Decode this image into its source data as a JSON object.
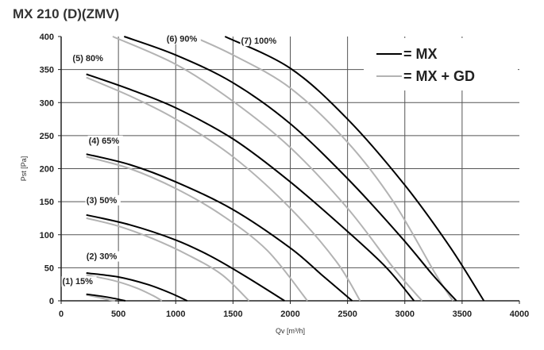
{
  "title": "MX 210 (D)(ZMV)",
  "chart_data": {
    "type": "line",
    "xlabel": "Qv [m³/h]",
    "ylabel": "Pst [Pa]",
    "xlim": [
      0,
      4000
    ],
    "ylim": [
      0,
      400
    ],
    "xticks": [
      "0",
      "500",
      "1000",
      "1500",
      "2000",
      "2500",
      "3000",
      "3500",
      "4000"
    ],
    "yticks": [
      "0",
      "50",
      "100",
      "150",
      "200",
      "250",
      "300",
      "350",
      "400"
    ],
    "grid": true,
    "legend_position": "top-right",
    "legend": [
      {
        "label": "= MX",
        "color": "#000000"
      },
      {
        "label": "= MX + GD",
        "color": "#b3b3b3"
      }
    ],
    "series": [
      {
        "group": "MX",
        "curve": "(1) 15%",
        "points": [
          [
            220,
            10
          ],
          [
            350,
            7
          ],
          [
            450,
            4
          ],
          [
            560,
            0
          ]
        ]
      },
      {
        "group": "MX + GD",
        "curve": "(1) 15%",
        "points": [
          [
            220,
            9
          ],
          [
            330,
            5
          ],
          [
            430,
            1
          ],
          [
            470,
            0
          ]
        ]
      },
      {
        "group": "MX",
        "curve": "(2) 30%",
        "points": [
          [
            220,
            42
          ],
          [
            500,
            36
          ],
          [
            750,
            25
          ],
          [
            950,
            12
          ],
          [
            1100,
            0
          ]
        ]
      },
      {
        "group": "MX + GD",
        "curve": "(2) 30%",
        "points": [
          [
            220,
            39
          ],
          [
            450,
            31
          ],
          [
            650,
            20
          ],
          [
            800,
            8
          ],
          [
            880,
            0
          ]
        ]
      },
      {
        "group": "MX",
        "curve": "(3) 50%",
        "points": [
          [
            220,
            130
          ],
          [
            600,
            115
          ],
          [
            1000,
            92
          ],
          [
            1300,
            68
          ],
          [
            1600,
            38
          ],
          [
            1950,
            0
          ]
        ]
      },
      {
        "group": "MX + GD",
        "curve": "(3) 50%",
        "points": [
          [
            220,
            125
          ],
          [
            500,
            113
          ],
          [
            800,
            94
          ],
          [
            1100,
            70
          ],
          [
            1400,
            40
          ],
          [
            1640,
            0
          ]
        ]
      },
      {
        "group": "MX",
        "curve": "(4) 65%",
        "points": [
          [
            220,
            222
          ],
          [
            600,
            206
          ],
          [
            1000,
            180
          ],
          [
            1500,
            138
          ],
          [
            2000,
            80
          ],
          [
            2270,
            40
          ],
          [
            2540,
            0
          ]
        ]
      },
      {
        "group": "MX + GD",
        "curve": "(4) 65%",
        "points": [
          [
            220,
            218
          ],
          [
            600,
            200
          ],
          [
            1000,
            170
          ],
          [
            1400,
            130
          ],
          [
            1800,
            76
          ],
          [
            2150,
            0
          ]
        ]
      },
      {
        "group": "MX",
        "curve": "(5) 80%",
        "points": [
          [
            220,
            343
          ],
          [
            600,
            320
          ],
          [
            1000,
            292
          ],
          [
            1500,
            245
          ],
          [
            2000,
            180
          ],
          [
            2500,
            105
          ],
          [
            2840,
            50
          ],
          [
            3080,
            0
          ]
        ]
      },
      {
        "group": "MX + GD",
        "curve": "(5) 80%",
        "points": [
          [
            220,
            338
          ],
          [
            600,
            310
          ],
          [
            1000,
            275
          ],
          [
            1500,
            218
          ],
          [
            2000,
            140
          ],
          [
            2400,
            60
          ],
          [
            2610,
            0
          ]
        ]
      },
      {
        "group": "MX",
        "curve": "(6) 90%",
        "points": [
          [
            550,
            400
          ],
          [
            1000,
            372
          ],
          [
            1500,
            330
          ],
          [
            2000,
            268
          ],
          [
            2500,
            185
          ],
          [
            2950,
            100
          ],
          [
            3250,
            38
          ],
          [
            3450,
            0
          ]
        ]
      },
      {
        "group": "MX + GD",
        "curve": "(6) 90%",
        "points": [
          [
            450,
            400
          ],
          [
            1000,
            358
          ],
          [
            1500,
            302
          ],
          [
            2000,
            232
          ],
          [
            2500,
            140
          ],
          [
            2900,
            50
          ],
          [
            3150,
            0
          ]
        ]
      },
      {
        "group": "MX",
        "curve": "(7) 100%",
        "points": [
          [
            1430,
            400
          ],
          [
            2000,
            352
          ],
          [
            2500,
            275
          ],
          [
            3000,
            175
          ],
          [
            3400,
            80
          ],
          [
            3690,
            0
          ]
        ]
      },
      {
        "group": "MX + GD",
        "curve": "(7) 100%",
        "points": [
          [
            1150,
            400
          ],
          [
            1500,
            372
          ],
          [
            2000,
            322
          ],
          [
            2500,
            240
          ],
          [
            2900,
            150
          ],
          [
            3270,
            40
          ],
          [
            3420,
            0
          ]
        ]
      }
    ],
    "curve_labels": [
      {
        "text": "(1) 15%",
        "x": 10,
        "y": 25
      },
      {
        "text": "(2) 30%",
        "x": 220,
        "y": 63
      },
      {
        "text": "(3) 50%",
        "x": 220,
        "y": 148
      },
      {
        "text": "(4) 65%",
        "x": 240,
        "y": 238
      },
      {
        "text": "(5) 80%",
        "x": 100,
        "y": 363
      },
      {
        "text": "(6) 90%",
        "x": 920,
        "y": 392
      },
      {
        "text": "(7) 100%",
        "x": 1570,
        "y": 389
      }
    ]
  }
}
